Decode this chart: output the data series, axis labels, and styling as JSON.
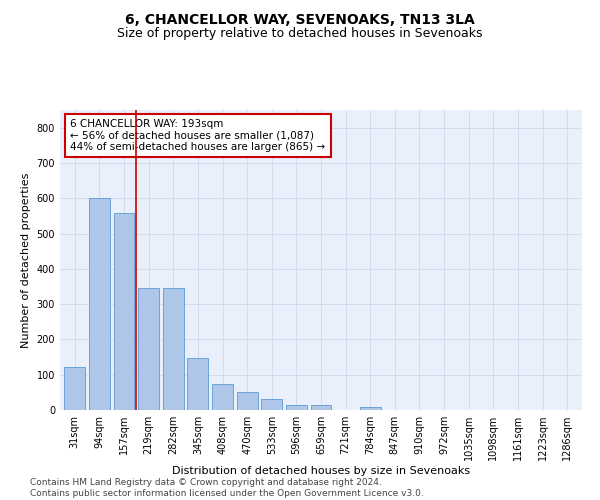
{
  "title": "6, CHANCELLOR WAY, SEVENOAKS, TN13 3LA",
  "subtitle": "Size of property relative to detached houses in Sevenoaks",
  "xlabel": "Distribution of detached houses by size in Sevenoaks",
  "ylabel": "Number of detached properties",
  "categories": [
    "31sqm",
    "94sqm",
    "157sqm",
    "219sqm",
    "282sqm",
    "345sqm",
    "408sqm",
    "470sqm",
    "533sqm",
    "596sqm",
    "659sqm",
    "721sqm",
    "784sqm",
    "847sqm",
    "910sqm",
    "972sqm",
    "1035sqm",
    "1098sqm",
    "1161sqm",
    "1223sqm",
    "1286sqm"
  ],
  "values": [
    122,
    600,
    557,
    345,
    347,
    148,
    74,
    52,
    30,
    15,
    14,
    0,
    8,
    0,
    0,
    0,
    0,
    0,
    0,
    0,
    0
  ],
  "bar_color": "#aec6e8",
  "bar_edge_color": "#5b9bd5",
  "vline_x": 2.5,
  "vline_color": "#cc0000",
  "annotation_text": "6 CHANCELLOR WAY: 193sqm\n← 56% of detached houses are smaller (1,087)\n44% of semi-detached houses are larger (865) →",
  "annotation_box_color": "#ffffff",
  "annotation_box_edge": "#cc0000",
  "ylim": [
    0,
    850
  ],
  "yticks": [
    0,
    100,
    200,
    300,
    400,
    500,
    600,
    700,
    800
  ],
  "grid_color": "#d0d8e8",
  "background_color": "#eaf0fb",
  "footer": "Contains HM Land Registry data © Crown copyright and database right 2024.\nContains public sector information licensed under the Open Government Licence v3.0.",
  "title_fontsize": 10,
  "subtitle_fontsize": 9,
  "axis_label_fontsize": 8,
  "tick_fontsize": 7,
  "annotation_fontsize": 7.5,
  "footer_fontsize": 6.5
}
